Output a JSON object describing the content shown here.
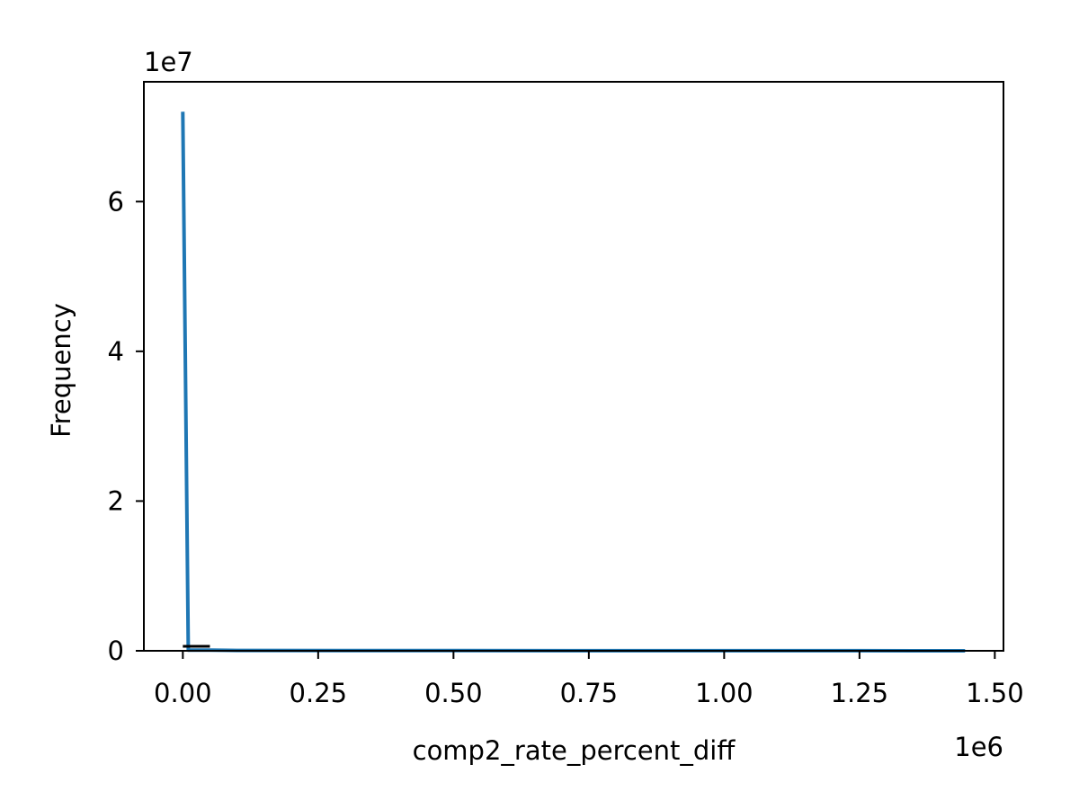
{
  "chart_data": {
    "type": "line",
    "xlabel": "comp2_rate_percent_diff",
    "ylabel": "Frequency",
    "x_offset_label": "1e6",
    "y_offset_label": "1e7",
    "x_ticks": [
      0.0,
      0.25,
      0.5,
      0.75,
      1.0,
      1.25,
      1.5
    ],
    "x_tick_labels": [
      "0.00",
      "0.25",
      "0.50",
      "0.75",
      "1.00",
      "1.25",
      "1.50"
    ],
    "y_ticks": [
      0,
      2,
      4,
      6
    ],
    "y_tick_labels": [
      "0",
      "2",
      "4",
      "6"
    ],
    "xlim": [
      -0.072,
      1.516
    ],
    "ylim": [
      0,
      7.6
    ],
    "grid": false,
    "series": [
      {
        "color": "#1f77b4",
        "x": [
          0.0,
          0.01,
          0.05,
          0.1,
          0.3,
          0.5,
          0.75,
          1.0,
          1.25,
          1.445
        ],
        "y": [
          7.2,
          0.01,
          0.01,
          0.005,
          0.003,
          0.002,
          0.001,
          0.001,
          0.001,
          0.0
        ]
      }
    ],
    "overlay_segment": {
      "color": "#000000",
      "x": [
        0.0,
        0.05
      ],
      "y": [
        0.06,
        0.06
      ]
    }
  }
}
